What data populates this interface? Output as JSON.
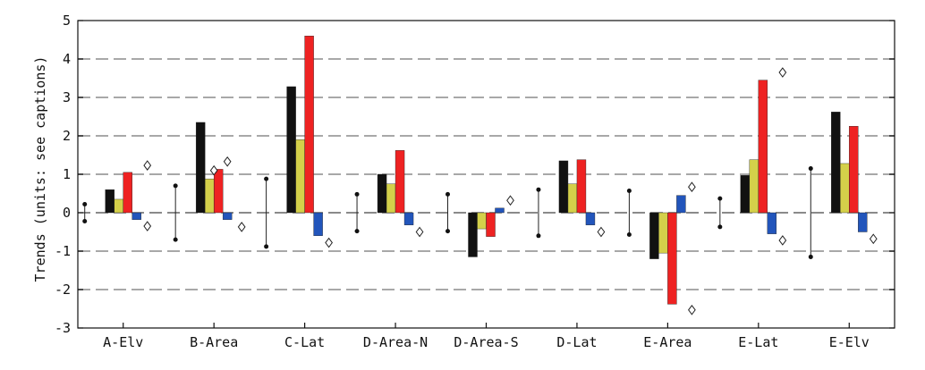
{
  "chart_data": {
    "type": "bar",
    "title": "",
    "xlabel": "",
    "ylabel": "Trends (units: see captions)",
    "ylim": [
      -3,
      5
    ],
    "yticks": [
      -3,
      -2,
      -1,
      0,
      1,
      2,
      3,
      4,
      5
    ],
    "grid": "horizontal dashed",
    "legend": "none",
    "categories": [
      "A-Elv",
      "B-Area",
      "C-Lat",
      "D-Area-N",
      "D-Area-S",
      "D-Lat",
      "E-Area",
      "E-Lat",
      "E-Elv"
    ],
    "series": [
      {
        "color": "#111111",
        "values": [
          0.6,
          2.35,
          3.28,
          1.0,
          -1.15,
          1.35,
          -1.2,
          0.97,
          2.62
        ]
      },
      {
        "color": "#d4d04a",
        "values": [
          0.35,
          0.88,
          1.9,
          0.75,
          -0.42,
          0.75,
          -1.05,
          1.38,
          1.28
        ]
      },
      {
        "color": "#ee2222",
        "values": [
          1.05,
          1.13,
          4.6,
          1.62,
          -0.62,
          1.38,
          -2.38,
          3.45,
          2.25
        ]
      },
      {
        "color": "#2255bb",
        "values": [
          -0.18,
          -0.18,
          -0.6,
          -0.32,
          0.12,
          -0.32,
          0.45,
          -0.55,
          -0.5
        ]
      }
    ],
    "error_ranges": [
      0.22,
      0.7,
      0.88,
      0.48,
      0.48,
      0.6,
      0.57,
      0.37,
      1.15
    ],
    "diamond_markers": [
      [
        1.23,
        -0.35
      ],
      [
        1.1,
        1.33,
        -0.37
      ],
      [
        -0.78
      ],
      [
        -0.5
      ],
      [
        0.32
      ],
      [
        -0.5
      ],
      [
        0.67,
        -2.53
      ],
      [
        3.65,
        -0.72
      ],
      [
        -0.68
      ]
    ]
  }
}
